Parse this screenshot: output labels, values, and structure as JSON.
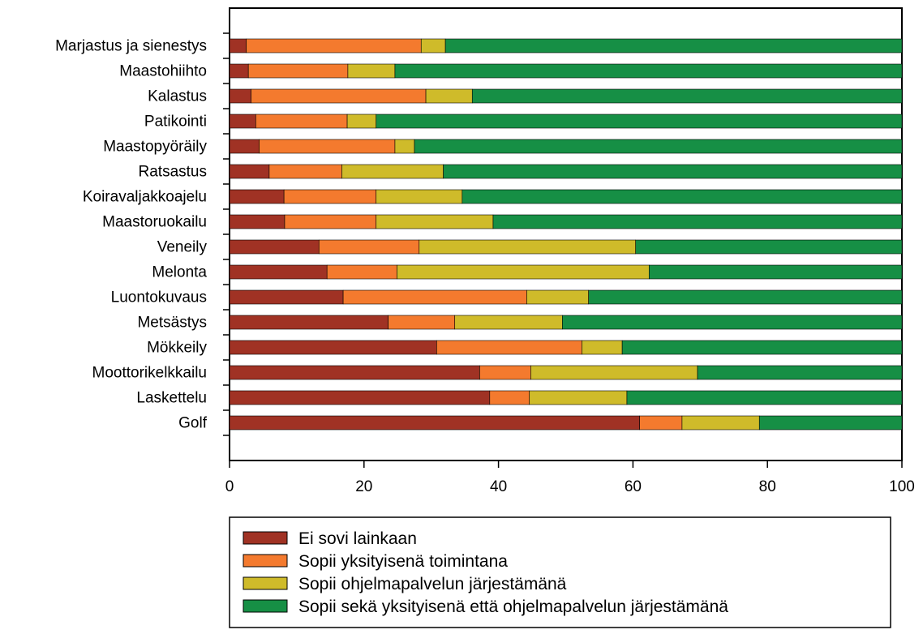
{
  "chart_data": {
    "type": "bar",
    "orientation": "horizontal",
    "stacked": true,
    "title": "",
    "xlabel": "",
    "ylabel": "",
    "xlim": [
      0,
      100
    ],
    "xticks": [
      "0",
      "20",
      "40",
      "60",
      "80",
      "100"
    ],
    "grid": false,
    "legend_position": "bottom",
    "categories": [
      "Marjastus ja sienestys",
      "Maastohiihto",
      "Kalastus",
      "Patikointi",
      "Maastopyöräily",
      "Ratsastus",
      "Koiravaljakkoajelu",
      "Maastoruokailu",
      "Veneily",
      "Melonta",
      "Luontokuvaus",
      "Metsästys",
      "Mökkeily",
      "Moottorikelkkailu",
      "Laskettelu",
      "Golf"
    ],
    "series": [
      {
        "name": "Ei sovi lainkaan",
        "color": "#a03224",
        "values": [
          2.5,
          2.8,
          3.2,
          3.9,
          4.4,
          5.9,
          8.1,
          8.2,
          13.3,
          14.5,
          16.9,
          23.6,
          30.8,
          37.2,
          38.7,
          61.0
        ]
      },
      {
        "name": "Sopii yksityisenä toimintana",
        "color": "#f47a2e",
        "values": [
          26.0,
          14.8,
          26.0,
          13.6,
          20.2,
          10.8,
          13.7,
          13.6,
          14.9,
          10.4,
          27.3,
          9.9,
          21.6,
          7.6,
          5.9,
          6.3
        ]
      },
      {
        "name": "Sopii ohjelmapalvelun järjestämänä",
        "color": "#cfbb2a",
        "values": [
          3.6,
          7.0,
          6.9,
          4.3,
          2.9,
          15.1,
          12.8,
          17.4,
          32.2,
          37.5,
          9.2,
          16.0,
          6.0,
          24.8,
          14.5,
          11.5
        ]
      },
      {
        "name": "Sopii sekä yksityisenä että ohjelmapalvelun järjestämänä",
        "color": "#168f45",
        "values": [
          67.9,
          75.4,
          63.9,
          78.2,
          72.5,
          68.2,
          65.4,
          60.8,
          39.6,
          37.6,
          46.6,
          50.5,
          41.6,
          30.4,
          40.9,
          21.2
        ]
      }
    ]
  }
}
